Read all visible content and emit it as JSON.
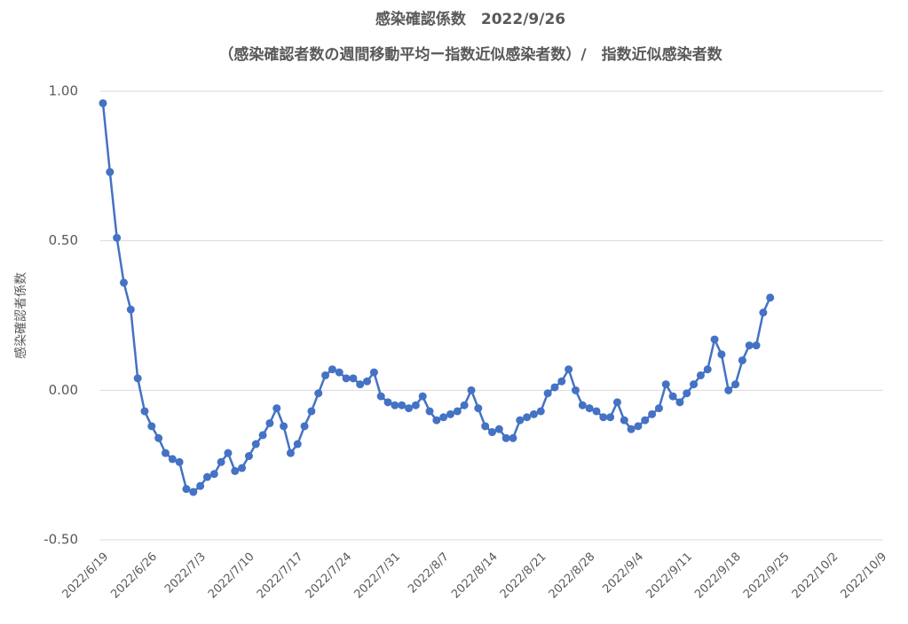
{
  "chart_data": {
    "type": "line",
    "title": "感染確認係数　2022/9/26",
    "subtitle": "（感染確認者数の週間移動平均ー指数近似感染者数）/　指数近似感染者数",
    "y_label": "感染確認者係数",
    "categories": [
      "2022/6/19",
      null,
      null,
      null,
      null,
      null,
      null,
      "2022/6/26",
      null,
      null,
      null,
      null,
      null,
      null,
      "2022/7/3",
      null,
      null,
      null,
      null,
      null,
      null,
      "2022/7/10",
      null,
      null,
      null,
      null,
      null,
      null,
      "2022/7/17",
      null,
      null,
      null,
      null,
      null,
      null,
      "2022/7/24",
      null,
      null,
      null,
      null,
      null,
      null,
      "2022/7/31",
      null,
      null,
      null,
      null,
      null,
      null,
      "2022/8/7",
      null,
      null,
      null,
      null,
      null,
      null,
      "2022/8/14",
      null,
      null,
      null,
      null,
      null,
      null,
      "2022/8/21",
      null,
      null,
      null,
      null,
      null,
      null,
      "2022/8/28",
      null,
      null,
      null,
      null,
      null,
      null,
      "2022/9/4",
      null,
      null,
      null,
      null,
      null,
      null,
      "2022/9/11",
      null,
      null,
      null,
      null,
      null,
      null,
      "2022/9/18",
      null,
      null,
      null,
      null,
      null,
      null,
      "2022/9/25",
      null,
      null,
      null,
      null,
      null,
      null,
      "2022/10/2",
      null,
      null,
      null,
      null,
      null,
      null,
      "2022/10/9"
    ],
    "series": [
      {
        "color": "#4472c4",
        "values": [
          0.96,
          0.73,
          0.51,
          0.36,
          0.27,
          0.04,
          -0.07,
          -0.12,
          -0.16,
          -0.21,
          -0.23,
          -0.24,
          -0.33,
          -0.34,
          -0.32,
          -0.29,
          -0.28,
          -0.24,
          -0.21,
          -0.27,
          -0.26,
          -0.22,
          -0.18,
          -0.15,
          -0.11,
          -0.06,
          -0.12,
          -0.21,
          -0.18,
          -0.12,
          -0.07,
          -0.01,
          0.05,
          0.07,
          0.06,
          0.04,
          0.04,
          0.02,
          0.03,
          0.06,
          -0.02,
          -0.04,
          -0.05,
          -0.05,
          -0.06,
          -0.05,
          -0.02,
          -0.07,
          -0.1,
          -0.09,
          -0.08,
          -0.07,
          -0.05,
          0.0,
          -0.06,
          -0.12,
          -0.14,
          -0.13,
          -0.16,
          -0.16,
          -0.1,
          -0.09,
          -0.08,
          -0.07,
          -0.01,
          0.01,
          0.03,
          0.07,
          0.0,
          -0.05,
          -0.06,
          -0.07,
          -0.09,
          -0.09,
          -0.04,
          -0.1,
          -0.13,
          -0.12,
          -0.1,
          -0.08,
          -0.06,
          0.02,
          -0.02,
          -0.04,
          -0.01,
          0.02,
          0.05,
          0.07,
          0.17,
          0.12,
          0.0,
          0.02,
          0.1,
          0.15,
          0.15,
          0.26,
          0.31,
          null,
          null,
          null,
          null,
          null,
          null,
          null,
          null,
          null,
          null,
          null,
          null,
          null,
          null,
          null,
          null
        ]
      }
    ],
    "ylim": [
      -0.5,
      1
    ],
    "yticks": [
      {
        "value": -0.5,
        "label": "-0.50"
      },
      {
        "value": 0,
        "label": "0.00"
      },
      {
        "value": 0.5,
        "label": "0.50"
      },
      {
        "value": 1,
        "label": "1.00"
      }
    ],
    "grid": true
  }
}
